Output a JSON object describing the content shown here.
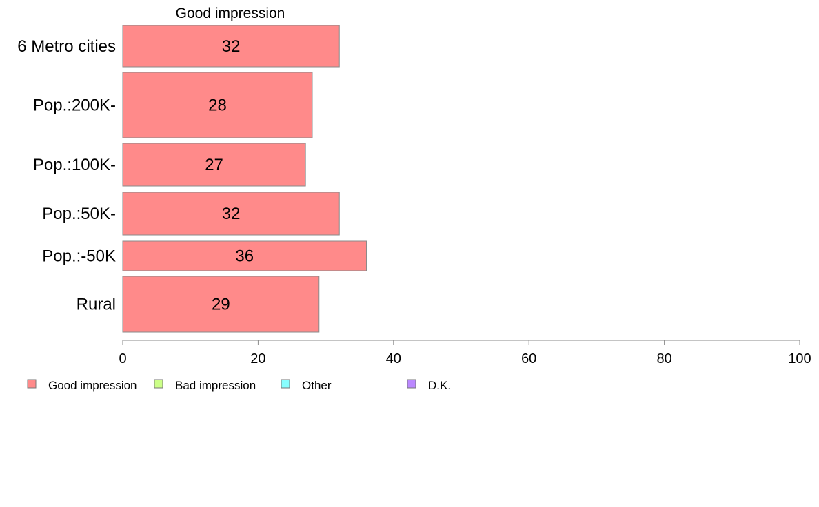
{
  "chart_data": {
    "type": "bar",
    "orientation": "horizontal",
    "title": "Good impression",
    "categories": [
      "6 Metro cities",
      "Pop.:200K-",
      "Pop.:100K-",
      "Pop.:50K-",
      "Pop.:-50K",
      "Rural"
    ],
    "series": [
      {
        "name": "Good impression",
        "values": [
          32,
          28,
          27,
          32,
          36,
          29
        ]
      }
    ],
    "xlim": [
      0,
      100
    ],
    "x_ticks": [
      0,
      20,
      40,
      60,
      80,
      100
    ],
    "grid": false,
    "legend_position": "bottom-left",
    "legend": [
      {
        "label": "Good impression",
        "color": "#ff8a8a"
      },
      {
        "label": "Bad impression",
        "color": "#ccff88"
      },
      {
        "label": "Other",
        "color": "#88ffff"
      },
      {
        "label": "D.K.",
        "color": "#bb88ff"
      }
    ],
    "bar_color": "#ff8a8a"
  }
}
